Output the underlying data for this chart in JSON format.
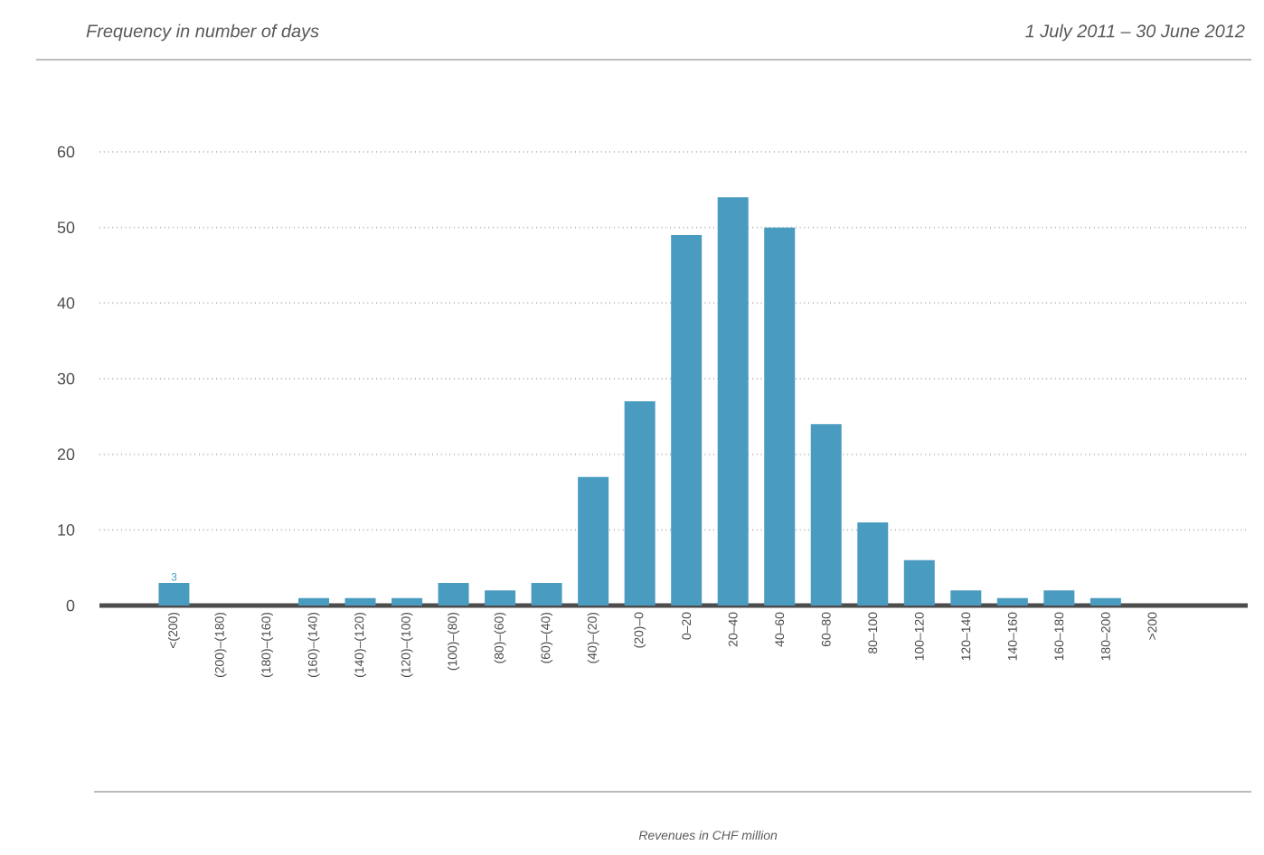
{
  "chart_data": {
    "type": "bar",
    "title": "Frequency in number of days",
    "subtitle": "1 July 2011 – 30 June 2012",
    "categories": [
      "<(200)",
      "(200)–(180)",
      "(180)–(160)",
      "(160)–(140)",
      "(140)–(120)",
      "(120)–(100)",
      "(100)–(80)",
      "(80)–(60)",
      "(60)–(40)",
      "(40)–(20)",
      "(20)–0",
      "0–20",
      "20–40",
      "40–60",
      "60–80",
      "80–100",
      "100–120",
      "120–140",
      "140–160",
      "160–180",
      "180–200",
      ">200"
    ],
    "values": [
      3,
      0,
      0,
      1,
      1,
      1,
      3,
      2,
      3,
      17,
      27,
      49,
      54,
      50,
      24,
      11,
      6,
      2,
      1,
      2,
      1,
      0
    ],
    "color": "#4a9bc0",
    "ylim": [
      0,
      60
    ],
    "yticks": [
      0,
      10,
      20,
      30,
      40,
      50,
      60
    ],
    "grid": "y",
    "annotations": [
      {
        "text": "3",
        "x": "<(200)",
        "y": 3
      },
      "Revenues in CHF million"
    ]
  }
}
